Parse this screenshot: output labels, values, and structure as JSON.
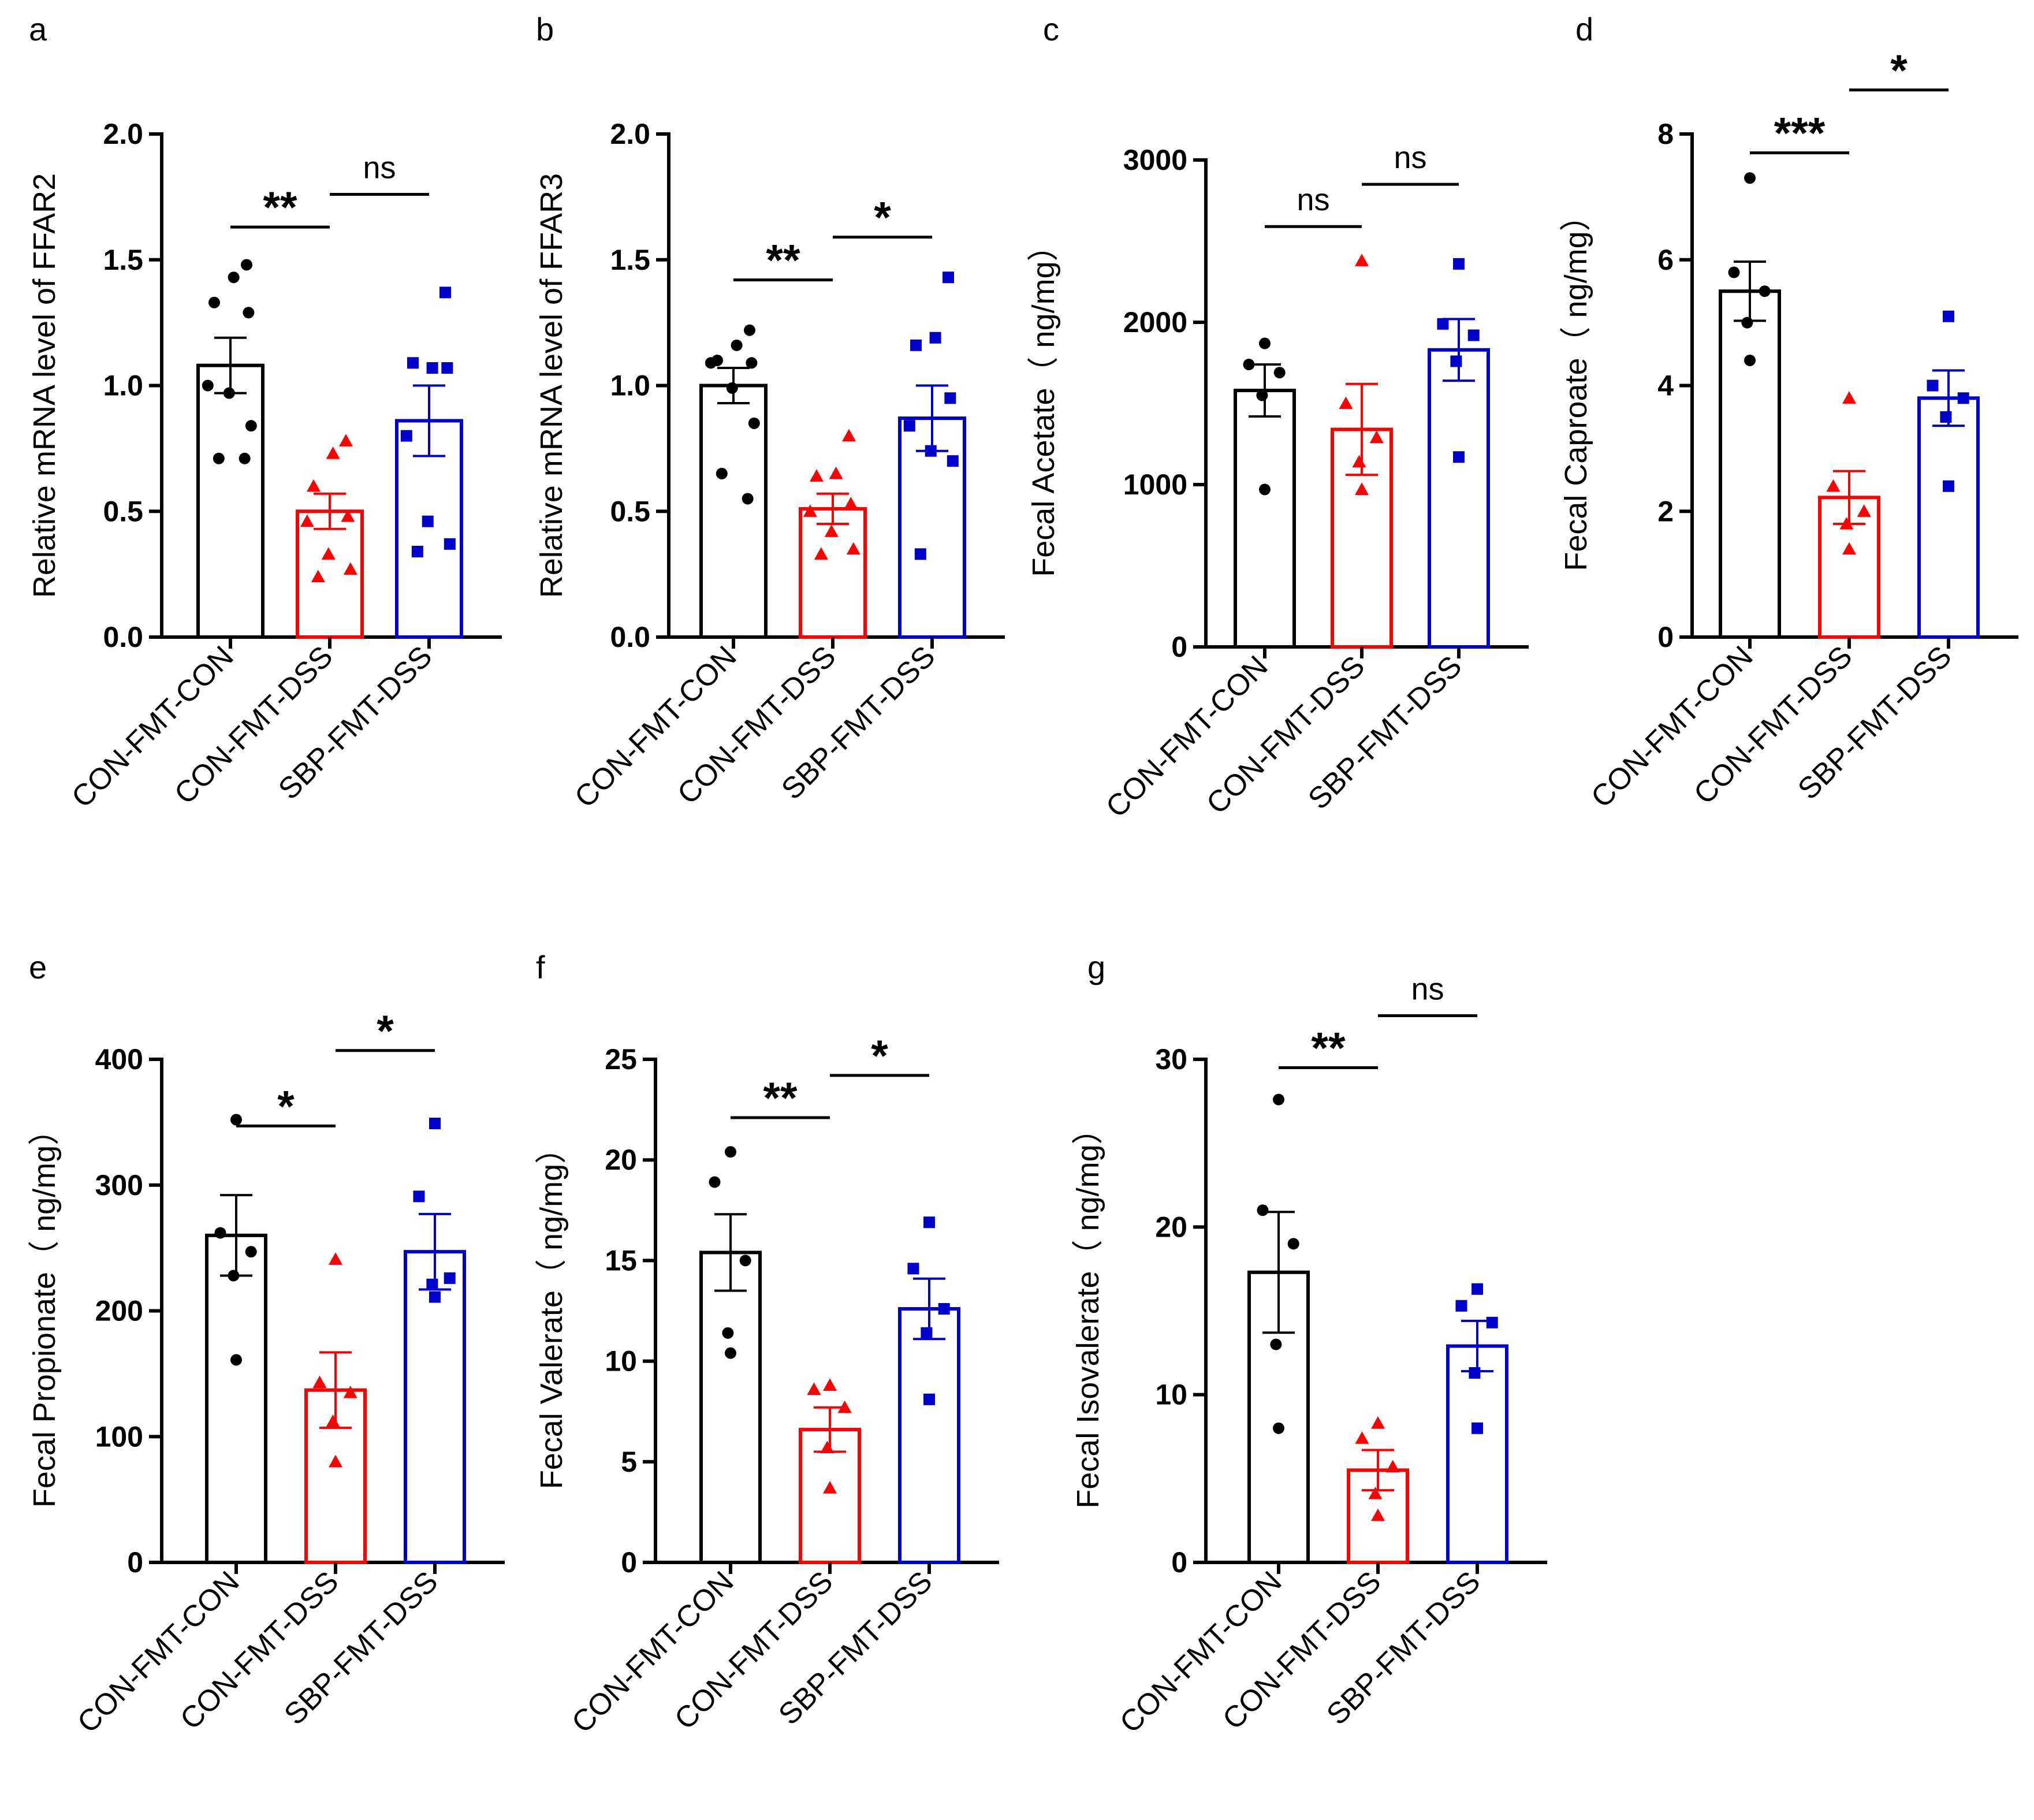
{
  "colors": {
    "CON-FMT-CON": "#000000",
    "CON-FMT-DSS": "#ff0000",
    "SBP-FMT-DSS": "#0000cc"
  },
  "markers": {
    "CON-FMT-CON": "circle",
    "CON-FMT-DSS": "triangle",
    "SBP-FMT-DSS": "square"
  },
  "chart_data": [
    {
      "panel": "a",
      "type": "bar",
      "ylabel": "Relative mRNA level of FFAR2",
      "categories": [
        "CON-FMT-CON",
        "CON-FMT-DSS",
        "SBP-FMT-DSS"
      ],
      "yticks": [
        "0.0",
        "0.5",
        "1.0",
        "1.5",
        "2.0"
      ],
      "ytick_values": [
        0,
        0.5,
        1.0,
        1.5,
        2.0
      ],
      "ylim": [
        0,
        2.0
      ],
      "means": [
        1.08,
        0.5,
        0.86
      ],
      "sem": [
        0.11,
        0.07,
        0.14
      ],
      "points": [
        [
          1.48,
          1.43,
          1.33,
          1.29,
          1.0,
          0.97,
          0.84,
          0.71,
          0.71
        ],
        [
          0.78,
          0.73,
          0.6,
          0.48,
          0.46,
          0.33,
          0.27,
          0.24
        ],
        [
          1.37,
          1.07,
          1.09,
          1.07,
          0.8,
          0.46,
          0.37,
          0.34
        ]
      ],
      "significance": [
        {
          "from": 0,
          "to": 1,
          "label": "**",
          "y": 1.63
        },
        {
          "from": 1,
          "to": 2,
          "label": "ns",
          "y": 1.76
        }
      ]
    },
    {
      "panel": "b",
      "type": "bar",
      "ylabel": "Relative mRNA level of FFAR3",
      "categories": [
        "CON-FMT-CON",
        "CON-FMT-DSS",
        "SBP-FMT-DSS"
      ],
      "yticks": [
        "0.0",
        "0.5",
        "1.0",
        "1.5",
        "2.0"
      ],
      "ytick_values": [
        0,
        0.5,
        1.0,
        1.5,
        2.0
      ],
      "ylim": [
        0,
        2.0
      ],
      "means": [
        1.0,
        0.51,
        0.87
      ],
      "sem": [
        0.07,
        0.06,
        0.13
      ],
      "points": [
        [
          1.22,
          1.16,
          1.1,
          1.09,
          1.09,
          0.99,
          0.85,
          0.65,
          0.55
        ],
        [
          0.8,
          0.65,
          0.64,
          0.53,
          0.5,
          0.42,
          0.35,
          0.33
        ],
        [
          1.43,
          1.19,
          1.16,
          0.95,
          0.84,
          0.74,
          0.7,
          0.33
        ]
      ],
      "significance": [
        {
          "from": 0,
          "to": 1,
          "label": "**",
          "y": 1.42
        },
        {
          "from": 1,
          "to": 2,
          "label": "*",
          "y": 1.59
        }
      ]
    },
    {
      "panel": "c",
      "type": "bar",
      "ylabel": "Fecal Acetate（ ng/mg）",
      "categories": [
        "CON-FMT-CON",
        "CON-FMT-DSS",
        "SBP-FMT-DSS"
      ],
      "yticks": [
        "0",
        "1000",
        "2000",
        "3000"
      ],
      "ytick_values": [
        0,
        1000,
        2000,
        3000
      ],
      "ylim": [
        0,
        3000
      ],
      "means": [
        1580,
        1340,
        1830
      ],
      "sem": [
        160,
        280,
        190
      ],
      "points": [
        [
          1870,
          1740,
          1690,
          1550,
          970
        ],
        [
          2380,
          1500,
          1290,
          1140,
          970
        ],
        [
          2360,
          1990,
          1920,
          1760,
          1170
        ]
      ],
      "significance": [
        {
          "from": 0,
          "to": 1,
          "label": "ns",
          "y": 2590
        },
        {
          "from": 1,
          "to": 2,
          "label": "ns",
          "y": 2850
        }
      ]
    },
    {
      "panel": "d",
      "type": "bar",
      "ylabel": "Fecal Caproate（ ng/mg）",
      "categories": [
        "CON-FMT-CON",
        "CON-FMT-DSS",
        "SBP-FMT-DSS"
      ],
      "yticks": [
        "0",
        "2",
        "4",
        "6",
        "8"
      ],
      "ytick_values": [
        0,
        2,
        4,
        6,
        8
      ],
      "ylim": [
        0,
        8
      ],
      "means": [
        5.5,
        2.22,
        3.8
      ],
      "sem": [
        0.47,
        0.42,
        0.44
      ],
      "points": [
        [
          7.3,
          5.8,
          5.5,
          5.0,
          4.4
        ],
        [
          3.8,
          2.4,
          2.0,
          1.8,
          1.4
        ],
        [
          5.1,
          4.0,
          3.8,
          3.5,
          2.4
        ]
      ],
      "significance": [
        {
          "from": 0,
          "to": 1,
          "label": "***",
          "y": 7.7
        },
        {
          "from": 1,
          "to": 2,
          "label": "*",
          "y": 8.7
        }
      ]
    },
    {
      "panel": "e",
      "type": "bar",
      "ylabel": "Fecal Propionate（ ng/mg）",
      "categories": [
        "CON-FMT-CON",
        "CON-FMT-DSS",
        "SBP-FMT-DSS"
      ],
      "yticks": [
        "0",
        "100",
        "200",
        "300",
        "400"
      ],
      "ytick_values": [
        0,
        100,
        200,
        300,
        400
      ],
      "ylim": [
        0,
        400
      ],
      "means": [
        260,
        137,
        247
      ],
      "sem": [
        32,
        30,
        30
      ],
      "points": [
        [
          352,
          262,
          247,
          228,
          161
        ],
        [
          241,
          143,
          135,
          112,
          80
        ],
        [
          349,
          291,
          226,
          221,
          211
        ]
      ],
      "significance": [
        {
          "from": 0,
          "to": 1,
          "label": "*",
          "y": 347
        },
        {
          "from": 1,
          "to": 2,
          "label": "*",
          "y": 407
        }
      ]
    },
    {
      "panel": "f",
      "type": "bar",
      "ylabel": "Fecal Valerate（ ng/mg）",
      "categories": [
        "CON-FMT-CON",
        "CON-FMT-DSS",
        "SBP-FMT-DSS"
      ],
      "yticks": [
        "0",
        "5",
        "10",
        "15",
        "20",
        "25"
      ],
      "ytick_values": [
        0,
        5,
        10,
        15,
        20,
        25
      ],
      "ylim": [
        0,
        25
      ],
      "means": [
        15.4,
        6.6,
        12.6
      ],
      "sem": [
        1.9,
        1.1,
        1.5
      ],
      "points": [
        [
          20.4,
          18.9,
          15.0,
          11.4,
          10.4
        ],
        [
          8.8,
          8.6,
          7.7,
          5.7,
          3.7
        ],
        [
          16.9,
          14.6,
          12.6,
          11.4,
          8.1
        ]
      ],
      "significance": [
        {
          "from": 0,
          "to": 1,
          "label": "**",
          "y": 22.1
        },
        {
          "from": 1,
          "to": 2,
          "label": "*",
          "y": 24.2
        }
      ]
    },
    {
      "panel": "g",
      "type": "bar",
      "ylabel": "Fecal Isovalerate（ ng/mg）",
      "categories": [
        "CON-FMT-CON",
        "CON-FMT-DSS",
        "SBP-FMT-DSS"
      ],
      "yticks": [
        "0",
        "10",
        "20",
        "30"
      ],
      "ytick_values": [
        0,
        10,
        20,
        30
      ],
      "ylim": [
        0,
        30
      ],
      "means": [
        17.3,
        5.5,
        12.9
      ],
      "sem": [
        3.6,
        1.2,
        1.5
      ],
      "points": [
        [
          27.6,
          21.0,
          19.0,
          13.0,
          8.0
        ],
        [
          8.3,
          7.4,
          5.7,
          4.1,
          2.8
        ],
        [
          16.3,
          15.3,
          14.3,
          11.3,
          8.0
        ]
      ],
      "significance": [
        {
          "from": 0,
          "to": 1,
          "label": "**",
          "y": 29.5
        },
        {
          "from": 1,
          "to": 2,
          "label": "ns",
          "y": 32.6
        }
      ]
    }
  ]
}
